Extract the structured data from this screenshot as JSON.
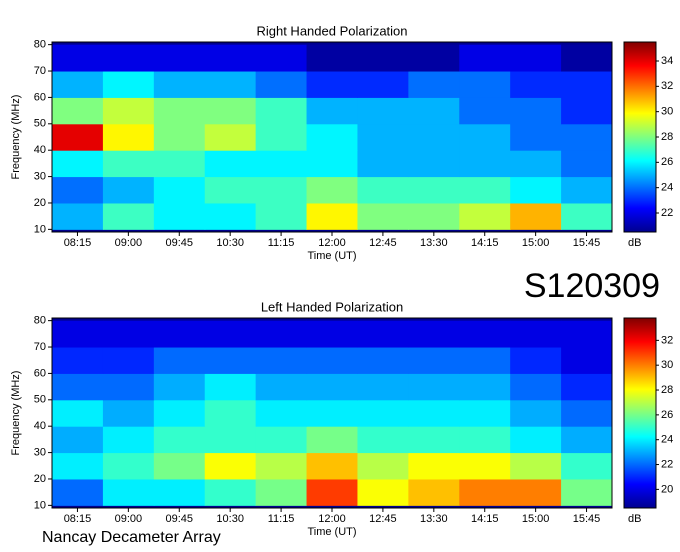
{
  "chart_data": [
    {
      "type": "heatmap",
      "title": "Right Handed Polarization",
      "x_label": "Time (UT)",
      "y_label": "Frequency (MHz)",
      "x": [
        "08:15",
        "09:00",
        "09:45",
        "10:30",
        "11:15",
        "12:00",
        "12:45",
        "13:30",
        "14:15",
        "15:00",
        "15:45"
      ],
      "y": [
        15,
        25,
        35,
        45,
        55,
        65,
        75
      ],
      "ylim": [
        9,
        81
      ],
      "yticks": [
        10,
        20,
        30,
        40,
        50,
        60,
        70,
        80
      ],
      "values": [
        [
          25,
          27,
          26,
          26,
          27,
          30,
          28,
          28,
          29,
          31,
          27
        ],
        [
          24,
          25,
          26,
          27,
          27,
          28,
          27,
          27,
          27,
          26,
          25
        ],
        [
          26,
          27,
          27,
          26,
          26,
          26,
          25,
          25,
          25,
          25,
          24
        ],
        [
          34,
          30,
          28,
          29,
          27,
          26,
          25,
          25,
          25,
          24,
          24
        ],
        [
          28,
          29,
          28,
          28,
          27,
          25,
          25,
          25,
          24,
          24,
          23
        ],
        [
          25,
          26,
          25,
          25,
          24,
          23,
          23,
          24,
          24,
          23,
          23
        ],
        [
          22,
          22,
          22,
          22,
          22,
          21,
          21,
          21,
          22,
          22,
          21
        ]
      ],
      "zlim": [
        20.5,
        35.5
      ],
      "zticks": [
        22,
        24,
        26,
        28,
        30,
        32,
        34
      ],
      "z_label": "dB",
      "colormap": "jet"
    },
    {
      "type": "heatmap",
      "title": "Left Handed Polarization",
      "x_label": "Time (UT)",
      "y_label": "Frequency (MHz)",
      "x": [
        "08:15",
        "09:00",
        "09:45",
        "10:30",
        "11:15",
        "12:00",
        "12:45",
        "13:30",
        "14:15",
        "15:00",
        "15:45"
      ],
      "y": [
        15,
        25,
        35,
        45,
        55,
        65,
        75
      ],
      "ylim": [
        9,
        81
      ],
      "yticks": [
        10,
        20,
        30,
        40,
        50,
        60,
        70,
        80
      ],
      "values": [
        [
          22,
          24,
          24,
          25,
          26,
          31,
          28,
          29,
          30,
          30,
          26
        ],
        [
          24,
          25,
          26,
          28,
          27,
          29,
          27,
          28,
          28,
          27,
          25
        ],
        [
          23,
          24,
          25,
          25,
          25,
          26,
          25,
          25,
          25,
          24,
          23
        ],
        [
          24,
          23,
          24,
          25,
          24,
          24,
          24,
          24,
          24,
          23,
          22
        ],
        [
          22,
          22,
          23,
          24,
          23,
          23,
          23,
          23,
          23,
          22,
          21
        ],
        [
          21,
          21,
          22,
          22,
          22,
          22,
          22,
          22,
          22,
          21,
          20
        ],
        [
          20,
          20,
          20,
          20,
          20,
          20,
          20,
          20,
          20,
          20,
          20
        ]
      ],
      "zlim": [
        18.5,
        33.8
      ],
      "zticks": [
        20,
        22,
        24,
        26,
        28,
        30,
        32
      ],
      "z_label": "dB",
      "colormap": "jet"
    }
  ],
  "event_id": "S120309",
  "observatory": "Nancay Decameter Array"
}
